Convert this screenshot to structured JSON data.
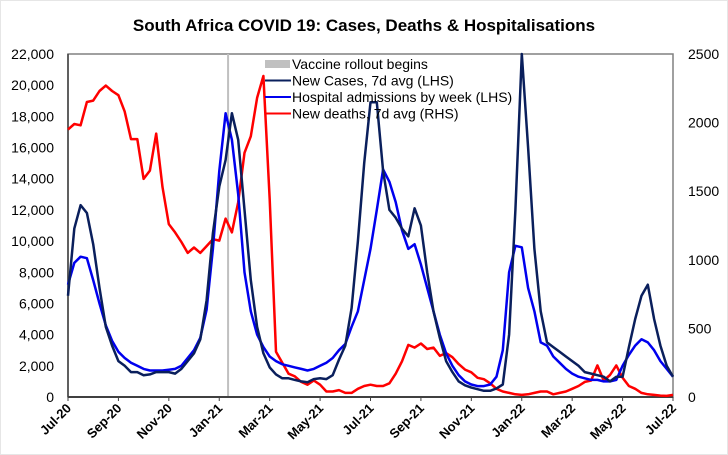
{
  "chart_data": {
    "type": "line",
    "title": "South Africa COVID 19: Cases, Deaths & Hospitalisations",
    "xlabel": "",
    "ylabel_left": "",
    "ylabel_right": "",
    "x_tick_labels": [
      "Jul-20",
      "Sep-20",
      "Nov-20",
      "Jan-21",
      "Mar-21",
      "May-21",
      "Jul-21",
      "Sep-21",
      "Nov-21",
      "Jan-22",
      "Mar-22",
      "May-22",
      "Jul-22"
    ],
    "x_range_months": [
      0,
      24
    ],
    "ylim_left": [
      0,
      22000
    ],
    "ylim_right": [
      0,
      2500
    ],
    "y_ticks_left": [
      "0",
      "2,000",
      "4,000",
      "6,000",
      "8,000",
      "10,000",
      "12,000",
      "14,000",
      "16,000",
      "18,000",
      "20,000",
      "22,000"
    ],
    "y_ticks_right": [
      "0",
      "500",
      "1000",
      "1500",
      "2000",
      "2500"
    ],
    "legend_position": "top-center",
    "vaccine_rollout": {
      "label": "Vaccine rollout begins",
      "x_month": 6.35,
      "color": "#c0c0c0"
    },
    "series": [
      {
        "name": "New Cases, 7d avg (LHS)",
        "axis": "left",
        "color": "#0a1f5c",
        "x_months": [
          0,
          0.25,
          0.5,
          0.75,
          1,
          1.25,
          1.5,
          1.75,
          2,
          2.25,
          2.5,
          2.75,
          3,
          3.25,
          3.5,
          3.75,
          4,
          4.25,
          4.5,
          4.75,
          5,
          5.25,
          5.5,
          5.75,
          6,
          6.25,
          6.5,
          6.75,
          7,
          7.25,
          7.5,
          7.75,
          8,
          8.25,
          8.5,
          8.75,
          9,
          9.25,
          9.5,
          9.75,
          10,
          10.25,
          10.5,
          10.75,
          11,
          11.25,
          11.5,
          11.75,
          12,
          12.25,
          12.5,
          12.75,
          13,
          13.25,
          13.5,
          13.75,
          14,
          14.25,
          14.5,
          14.75,
          15,
          15.25,
          15.5,
          15.75,
          16,
          16.25,
          16.5,
          16.75,
          17,
          17.25,
          17.5,
          17.75,
          18,
          18.25,
          18.5,
          18.75,
          19,
          19.25,
          19.5,
          19.75,
          20,
          20.25,
          20.5,
          20.75,
          21,
          21.25,
          21.5,
          21.75,
          22,
          22.25,
          22.5,
          22.75,
          23,
          23.25,
          23.5,
          23.75,
          24
        ],
        "values": [
          6500,
          10800,
          12300,
          11800,
          9800,
          7000,
          4500,
          3300,
          2300,
          2000,
          1600,
          1600,
          1400,
          1450,
          1600,
          1600,
          1600,
          1500,
          1800,
          2300,
          2800,
          3700,
          6200,
          10500,
          13500,
          15200,
          18200,
          16500,
          12000,
          7500,
          4500,
          2800,
          1900,
          1450,
          1200,
          1200,
          1100,
          1000,
          950,
          1150,
          1200,
          1150,
          1400,
          2400,
          3300,
          5700,
          10000,
          15000,
          18900,
          18900,
          14500,
          12000,
          11500,
          10800,
          10300,
          12100,
          11000,
          8000,
          5500,
          3800,
          2300,
          1600,
          1000,
          750,
          600,
          500,
          400,
          400,
          550,
          800,
          4000,
          12000,
          22200,
          16000,
          9500,
          5500,
          3500,
          3200,
          2900,
          2600,
          2300,
          2000,
          1600,
          1500,
          1400,
          1300,
          1000,
          1300,
          1300,
          3200,
          5000,
          6500,
          7200,
          5000,
          3300,
          2000,
          1300,
          800,
          450
        ]
      },
      {
        "name": "Hospital admissions by week (LHS)",
        "axis": "left",
        "color": "#0000ee",
        "x_months": [
          0,
          0.25,
          0.5,
          0.75,
          1,
          1.25,
          1.5,
          1.75,
          2,
          2.25,
          2.5,
          2.75,
          3,
          3.25,
          3.5,
          3.75,
          4,
          4.25,
          4.5,
          4.75,
          5,
          5.25,
          5.5,
          5.75,
          6,
          6.25,
          6.5,
          6.75,
          7,
          7.25,
          7.5,
          7.75,
          8,
          8.25,
          8.5,
          8.75,
          9,
          9.25,
          9.5,
          9.75,
          10,
          10.25,
          10.5,
          10.75,
          11,
          11.25,
          11.5,
          11.75,
          12,
          12.25,
          12.5,
          12.75,
          13,
          13.25,
          13.5,
          13.75,
          14,
          14.25,
          14.5,
          14.75,
          15,
          15.25,
          15.5,
          15.75,
          16,
          16.25,
          16.5,
          16.75,
          17,
          17.25,
          17.5,
          17.75,
          18,
          18.25,
          18.5,
          18.75,
          19,
          19.25,
          19.5,
          19.75,
          20,
          20.25,
          20.5,
          20.75,
          21,
          21.25,
          21.5,
          21.75,
          22,
          22.25,
          22.5,
          22.75,
          23,
          23.25,
          23.5,
          23.75,
          24
        ],
        "values": [
          7200,
          8600,
          9000,
          8900,
          7500,
          6000,
          4600,
          3600,
          2900,
          2500,
          2200,
          2000,
          1800,
          1700,
          1700,
          1700,
          1750,
          1800,
          2000,
          2500,
          3000,
          3800,
          5600,
          9500,
          14500,
          18200,
          16500,
          13000,
          8000,
          5500,
          4000,
          3200,
          2600,
          2300,
          2100,
          2000,
          1900,
          1800,
          1700,
          1800,
          2000,
          2200,
          2500,
          3000,
          3400,
          4500,
          5500,
          7500,
          9500,
          12000,
          14600,
          13800,
          12500,
          10700,
          9500,
          9800,
          8500,
          7000,
          5500,
          4000,
          2800,
          2000,
          1400,
          1000,
          800,
          700,
          700,
          800,
          1300,
          3000,
          8000,
          9700,
          9600,
          7000,
          5500,
          3500,
          3300,
          2600,
          2200,
          1800,
          1500,
          1300,
          1200,
          1100,
          1100,
          1000,
          1000,
          1100,
          2000,
          2700,
          3300,
          3700,
          3500,
          3000,
          2300,
          1800,
          1300,
          900,
          350
        ]
      },
      {
        "name": "New deaths, 7d avg (RHS)",
        "axis": "right",
        "color": "#ff0000",
        "x_months": [
          0,
          0.25,
          0.5,
          0.75,
          1,
          1.25,
          1.5,
          1.75,
          2,
          2.25,
          2.5,
          2.75,
          3,
          3.25,
          3.5,
          3.75,
          4,
          4.25,
          4.5,
          4.75,
          5,
          5.25,
          5.5,
          5.75,
          6,
          6.25,
          6.5,
          6.75,
          7,
          7.25,
          7.5,
          7.75,
          8,
          8.25,
          8.5,
          8.75,
          9,
          9.25,
          9.5,
          9.75,
          10,
          10.25,
          10.5,
          10.75,
          11,
          11.25,
          11.5,
          11.75,
          12,
          12.25,
          12.5,
          12.75,
          13,
          13.25,
          13.5,
          13.75,
          14,
          14.25,
          14.5,
          14.75,
          15,
          15.25,
          15.5,
          15.75,
          16,
          16.25,
          16.5,
          16.75,
          17,
          17.25,
          17.5,
          17.75,
          18,
          18.25,
          18.5,
          18.75,
          19,
          19.25,
          19.5,
          19.75,
          20,
          20.25,
          20.5,
          20.75,
          21,
          21.25,
          21.5,
          21.75,
          22,
          22.25,
          22.5,
          22.75,
          23,
          23.25,
          23.5,
          23.75,
          24
        ],
        "values": [
          1950,
          1990,
          1980,
          2150,
          2160,
          2230,
          2270,
          2230,
          2200,
          2080,
          1880,
          1880,
          1590,
          1650,
          1920,
          1530,
          1260,
          1200,
          1130,
          1050,
          1090,
          1050,
          1100,
          1150,
          1140,
          1300,
          1200,
          1420,
          1780,
          1900,
          2180,
          2340,
          1440,
          330,
          250,
          170,
          150,
          110,
          90,
          120,
          90,
          40,
          40,
          50,
          30,
          30,
          60,
          80,
          90,
          80,
          80,
          100,
          170,
          260,
          380,
          360,
          390,
          350,
          360,
          300,
          320,
          290,
          240,
          200,
          180,
          140,
          130,
          100,
          60,
          40,
          30,
          20,
          15,
          20,
          30,
          40,
          40,
          20,
          30,
          40,
          60,
          80,
          110,
          120,
          230,
          120,
          160,
          230,
          140,
          80,
          60,
          30,
          20,
          15,
          10,
          8,
          15,
          30,
          20
        ]
      }
    ]
  }
}
